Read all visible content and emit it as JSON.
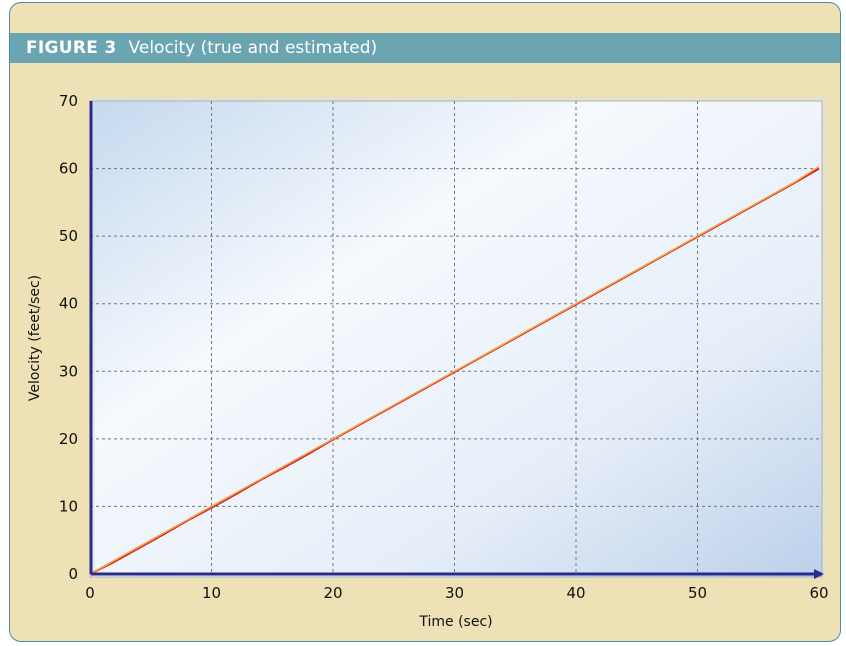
{
  "figure": {
    "label": "FIGURE 3",
    "title": "Velocity (true and estimated)"
  },
  "colors": {
    "panel_bg": "#eee1b6",
    "title_bar": "#6aa5b1",
    "axis": "#2a2a8c",
    "true_line": "#d0201c",
    "estimated_line": "#f5a04a"
  },
  "chart_data": {
    "type": "line",
    "title": "Velocity (true and estimated)",
    "xlabel": "Time (sec)",
    "ylabel": "Velocity (feet/sec)",
    "xlim": [
      0,
      60
    ],
    "ylim": [
      0,
      70
    ],
    "xticks": [
      0,
      10,
      20,
      30,
      40,
      50,
      60
    ],
    "yticks": [
      0,
      10,
      20,
      30,
      40,
      50,
      60,
      70
    ],
    "grid": true,
    "series": [
      {
        "color": "#d0201c",
        "x": [
          0,
          2,
          4,
          6,
          8,
          10,
          12,
          14,
          16,
          18,
          20,
          22,
          24,
          26,
          28,
          30,
          32,
          34,
          36,
          38,
          40,
          42,
          44,
          46,
          48,
          50,
          52,
          54,
          56,
          58,
          60
        ],
        "values": [
          0,
          1.8,
          3.8,
          5.8,
          7.9,
          9.8,
          11.8,
          13.9,
          15.8,
          17.8,
          19.9,
          21.9,
          23.9,
          25.9,
          27.9,
          29.9,
          31.9,
          33.9,
          35.9,
          37.9,
          39.9,
          41.9,
          43.9,
          45.9,
          47.9,
          49.9,
          51.9,
          53.9,
          55.9,
          57.9,
          60.0
        ]
      },
      {
        "color": "#f5a04a",
        "x": [
          0,
          2,
          4,
          6,
          8,
          10,
          12,
          14,
          16,
          18,
          20,
          22,
          24,
          26,
          28,
          30,
          32,
          34,
          36,
          38,
          40,
          42,
          44,
          46,
          48,
          50,
          52,
          54,
          56,
          58,
          60
        ],
        "values": [
          0,
          2.0,
          4.0,
          6.0,
          8.0,
          10.0,
          12.0,
          14.0,
          16.0,
          18.0,
          20.0,
          22.0,
          24.0,
          26.0,
          28.0,
          30.0,
          32.0,
          34.0,
          36.0,
          38.0,
          40.0,
          42.0,
          44.0,
          46.0,
          48.0,
          50.0,
          52.0,
          54.0,
          56.0,
          58.0,
          60.3
        ]
      }
    ]
  }
}
